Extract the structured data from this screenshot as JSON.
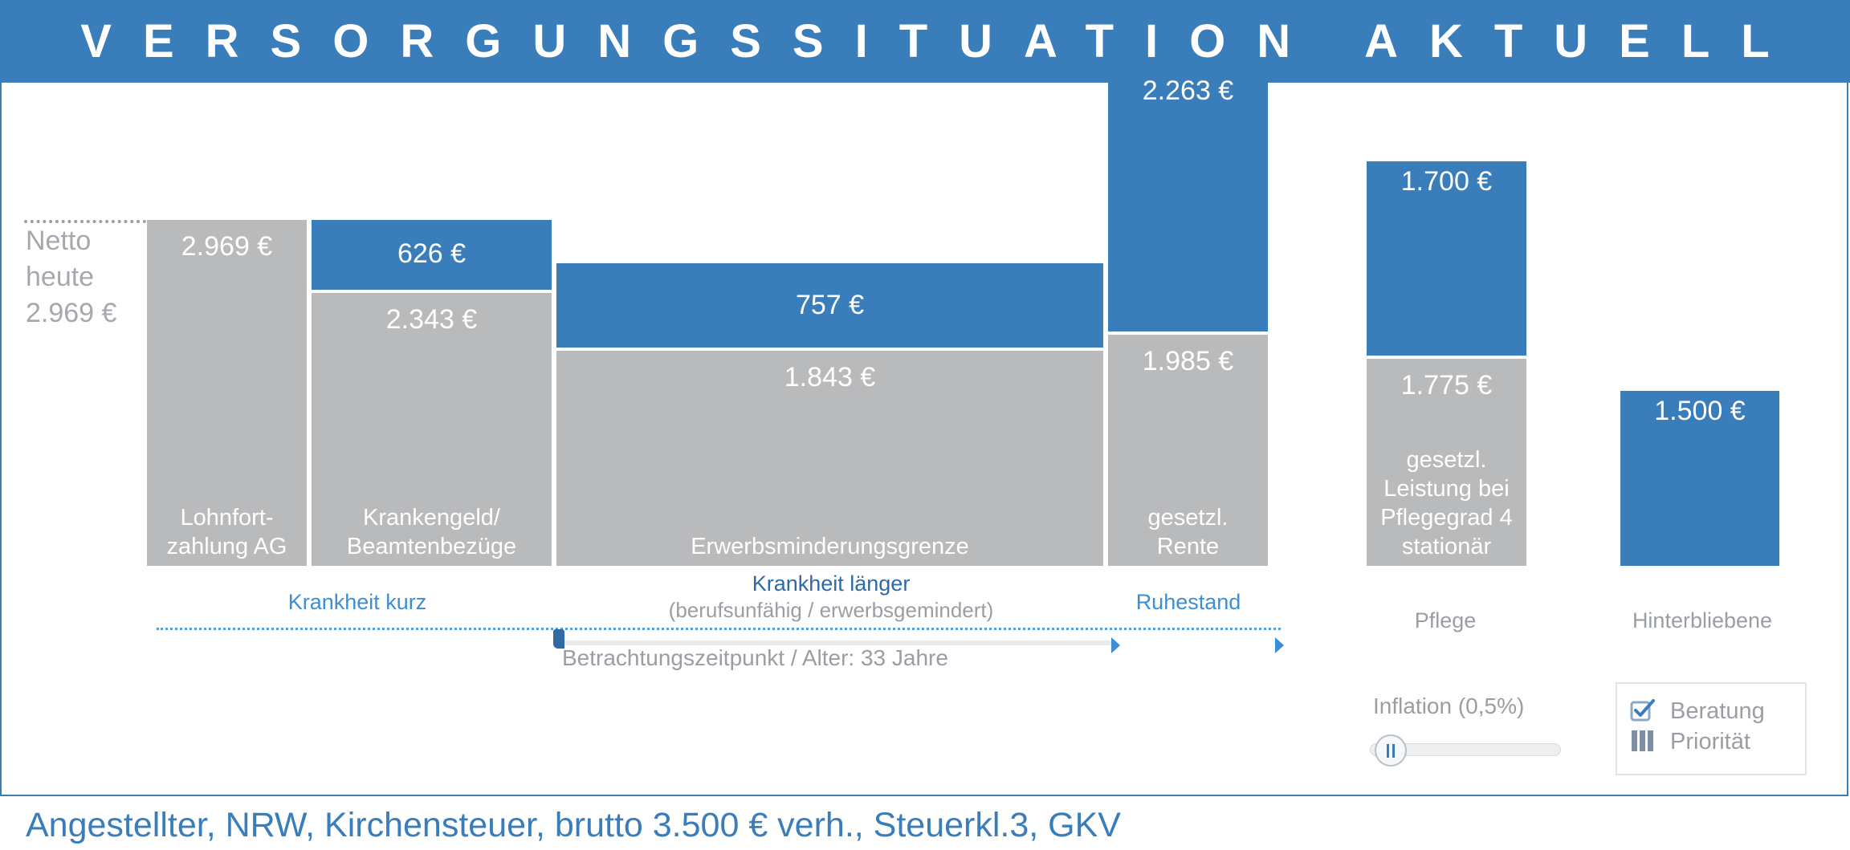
{
  "header": {
    "title": "VERSORGUNGSSITUATION AKTUELL"
  },
  "netto": {
    "line1": "Netto",
    "line2": "heute",
    "value": "2.969 €"
  },
  "chart_data": {
    "type": "bar",
    "stacked": true,
    "reference_line": {
      "value": 2969
    },
    "bars": [
      {
        "category": "Lohnfortzahlung AG",
        "gray": 2969,
        "blue": null,
        "gray_label": "2.969 €",
        "blue_label": "",
        "caption": [
          "Lohnfort-",
          "zahlung AG"
        ]
      },
      {
        "category": "Krankengeld/Beamtenbezüge",
        "gray": 2343,
        "blue": 626,
        "gray_label": "2.343 €",
        "blue_label": "626 €",
        "caption": [
          "Krankengeld/",
          "Beamtenbezüge"
        ]
      },
      {
        "category": "Erwerbsminderungsgrenze",
        "gray": 1843,
        "blue": 757,
        "gray_label": "1.843 €",
        "blue_label": "757 €",
        "caption": [
          "Erwerbsminderungsgrenze"
        ]
      },
      {
        "category": "gesetzl. Rente",
        "gray": 1985,
        "blue": 2263,
        "gray_label": "1.985 €",
        "blue_label": "2.263 €",
        "caption": [
          "gesetzl.",
          "Rente"
        ]
      },
      {
        "category": "gesetzl. Leistung bei Pflegegrad 4 stationär",
        "gray": 1775,
        "blue": 1700,
        "gray_label": "1.775 €",
        "blue_label": "1.700 €",
        "caption": [
          "gesetzl.",
          "Leistung bei",
          "Pflegegrad 4",
          "stationär"
        ]
      },
      {
        "category": "Hinterbliebene",
        "gray": 0,
        "blue": 1500,
        "gray_label": "",
        "blue_label": "1.500 €",
        "caption": []
      }
    ],
    "colors": {
      "gray": "#b9babc",
      "blue": "#3a7dbb"
    }
  },
  "phases": {
    "kurz": "Krankheit kurz",
    "laenger": "Krankheit länger",
    "laenger_sub": "(berufsunfähig / erwerbsgemindert)",
    "ruhestand": "Ruhestand",
    "pflege": "Pflege",
    "hinterbliebene": "Hinterbliebene"
  },
  "timeline": {
    "view_label": "Betrachtungszeitpunkt / Alter: 33 Jahre"
  },
  "inflation": {
    "label": "Inflation (0,5%)",
    "value_percent": 0.5
  },
  "legend": {
    "beratung": "Beratung",
    "prioritaet": "Priorität"
  },
  "footer": {
    "text": "Angestellter, NRW, Kirchensteuer, brutto 3.500 € verh., Steuerkl.3, GKV"
  },
  "colors": {
    "accent": "#3a7dbb",
    "muted_text": "#9a9ea3",
    "link_text": "#3a8fd6"
  }
}
